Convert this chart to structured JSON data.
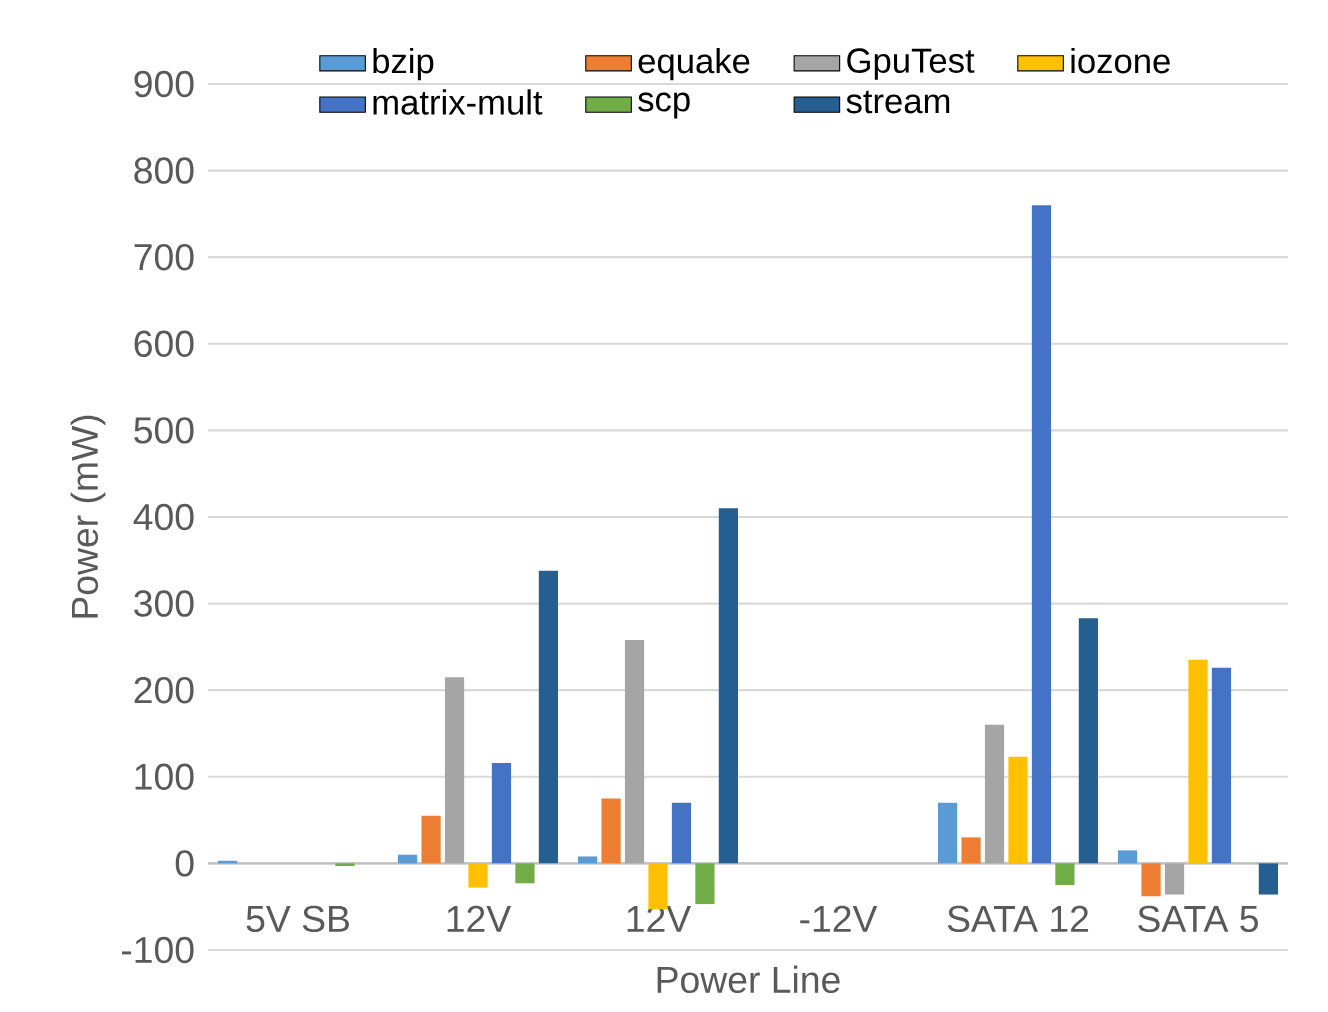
{
  "chart_data": {
    "type": "bar",
    "xlabel": "Power Line",
    "ylabel": "Power (mW)",
    "categories": [
      "5V SB",
      "12V",
      "12V",
      "-12V",
      "SATA 12",
      "SATA 5"
    ],
    "series": [
      {
        "name": "bzip",
        "color": "#5b9bd5",
        "values": [
          3,
          10,
          8,
          0,
          70,
          15
        ]
      },
      {
        "name": "equake",
        "color": "#ed7d31",
        "values": [
          0,
          55,
          75,
          0,
          30,
          -38
        ]
      },
      {
        "name": "GpuTest",
        "color": "#a5a5a5",
        "values": [
          0,
          215,
          258,
          0,
          160,
          -36
        ]
      },
      {
        "name": "iozone",
        "color": "#ffc000",
        "values": [
          0,
          -28,
          -53,
          0,
          123,
          235
        ]
      },
      {
        "name": "matrix-mult",
        "color": "#4472c4",
        "values": [
          0,
          116,
          70,
          0,
          760,
          226
        ]
      },
      {
        "name": "scp",
        "color": "#70ad47",
        "values": [
          -3,
          -23,
          -47,
          0,
          -25,
          0
        ]
      },
      {
        "name": "stream",
        "color": "#255e91",
        "values": [
          0,
          338,
          410,
          0,
          283,
          -36
        ]
      }
    ],
    "ylim": [
      -100,
      900
    ],
    "yticks": [
      -100,
      0,
      100,
      200,
      300,
      400,
      500,
      600,
      700,
      800,
      900
    ],
    "grid": "y",
    "legend": "top"
  }
}
